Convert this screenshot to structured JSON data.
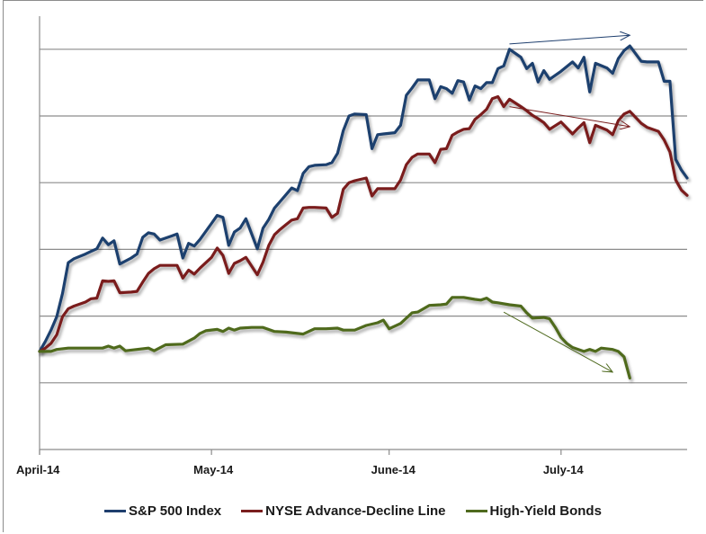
{
  "chart_data": {
    "type": "line",
    "title": "",
    "xlabel": "",
    "ylabel": "",
    "y_units": "relative (gridline intervals, no tick labels shown)",
    "ylim": [
      0,
      6.5
    ],
    "xlim_days": [
      0,
      113
    ],
    "grid": true,
    "legend_position": "bottom",
    "x_ticks": [
      {
        "label": "April-14",
        "day": 0
      },
      {
        "label": "May-14",
        "day": 30
      },
      {
        "label": "June-14",
        "day": 61
      },
      {
        "label": "July-14",
        "day": 91
      }
    ],
    "series": [
      {
        "name": "S&P 500 Index",
        "color": "#1f3f6e",
        "points": [
          [
            0,
            1.47
          ],
          [
            1,
            1.62
          ],
          [
            2,
            1.79
          ],
          [
            3,
            1.99
          ],
          [
            4,
            2.34
          ],
          [
            5,
            2.8
          ],
          [
            6,
            2.86
          ],
          [
            8,
            2.93
          ],
          [
            9,
            2.97
          ],
          [
            10,
            3.01
          ],
          [
            11,
            3.17
          ],
          [
            12,
            3.07
          ],
          [
            13,
            3.13
          ],
          [
            14,
            2.78
          ],
          [
            16,
            2.87
          ],
          [
            17,
            2.93
          ],
          [
            18,
            3.18
          ],
          [
            19,
            3.25
          ],
          [
            20,
            3.23
          ],
          [
            21,
            3.14
          ],
          [
            23,
            3.2
          ],
          [
            24,
            3.23
          ],
          [
            25,
            2.87
          ],
          [
            26,
            3.09
          ],
          [
            27,
            3.05
          ],
          [
            28,
            3.15
          ],
          [
            30,
            3.39
          ],
          [
            31,
            3.51
          ],
          [
            32,
            3.48
          ],
          [
            33,
            3.06
          ],
          [
            34,
            3.26
          ],
          [
            35,
            3.32
          ],
          [
            36,
            3.46
          ],
          [
            38,
            3.01
          ],
          [
            39,
            3.32
          ],
          [
            40,
            3.45
          ],
          [
            41,
            3.62
          ],
          [
            42,
            3.72
          ],
          [
            43,
            3.82
          ],
          [
            44,
            3.92
          ],
          [
            45,
            3.88
          ],
          [
            46,
            4.14
          ],
          [
            47,
            4.24
          ],
          [
            48,
            4.26
          ],
          [
            50,
            4.27
          ],
          [
            51,
            4.3
          ],
          [
            52,
            4.44
          ],
          [
            53,
            4.78
          ],
          [
            54,
            5.0
          ],
          [
            55,
            5.03
          ],
          [
            57,
            5.02
          ],
          [
            58,
            4.51
          ],
          [
            59,
            4.72
          ],
          [
            60,
            4.73
          ],
          [
            62,
            4.75
          ],
          [
            63,
            4.86
          ],
          [
            64,
            5.31
          ],
          [
            65,
            5.42
          ],
          [
            66,
            5.54
          ],
          [
            68,
            5.54
          ],
          [
            69,
            5.26
          ],
          [
            70,
            5.44
          ],
          [
            71,
            5.41
          ],
          [
            72,
            5.34
          ],
          [
            73,
            5.53
          ],
          [
            74,
            5.51
          ],
          [
            75,
            5.24
          ],
          [
            76,
            5.45
          ],
          [
            77,
            5.41
          ],
          [
            78,
            5.5
          ],
          [
            79,
            5.5
          ],
          [
            80,
            5.71
          ],
          [
            81,
            5.75
          ],
          [
            82,
            6.0
          ],
          [
            84,
            5.88
          ],
          [
            85,
            5.71
          ],
          [
            86,
            5.79
          ],
          [
            87,
            5.51
          ],
          [
            88,
            5.68
          ],
          [
            89,
            5.55
          ],
          [
            91,
            5.67
          ],
          [
            93,
            5.81
          ],
          [
            94,
            5.72
          ],
          [
            95,
            5.88
          ],
          [
            96,
            5.36
          ],
          [
            97,
            5.79
          ],
          [
            99,
            5.72
          ],
          [
            100,
            5.64
          ],
          [
            101,
            5.86
          ],
          [
            102,
            5.98
          ],
          [
            103,
            6.05
          ],
          [
            105,
            5.82
          ],
          [
            106,
            5.81
          ],
          [
            108,
            5.81
          ],
          [
            109,
            5.52
          ],
          [
            110,
            5.52
          ],
          [
            111,
            4.35
          ],
          [
            112,
            4.19
          ],
          [
            113,
            4.07
          ]
        ]
      },
      {
        "name": "NYSE Advance-Decline Line",
        "color": "#7a1f1f",
        "points": [
          [
            0,
            1.47
          ],
          [
            1,
            1.52
          ],
          [
            2,
            1.59
          ],
          [
            3,
            1.72
          ],
          [
            4,
            1.99
          ],
          [
            5,
            2.11
          ],
          [
            6,
            2.15
          ],
          [
            8,
            2.21
          ],
          [
            9,
            2.26
          ],
          [
            10,
            2.27
          ],
          [
            11,
            2.53
          ],
          [
            12,
            2.52
          ],
          [
            13,
            2.53
          ],
          [
            14,
            2.35
          ],
          [
            16,
            2.36
          ],
          [
            17,
            2.37
          ],
          [
            18,
            2.51
          ],
          [
            19,
            2.64
          ],
          [
            20,
            2.71
          ],
          [
            21,
            2.76
          ],
          [
            23,
            2.76
          ],
          [
            24,
            2.76
          ],
          [
            25,
            2.57
          ],
          [
            26,
            2.69
          ],
          [
            27,
            2.63
          ],
          [
            28,
            2.72
          ],
          [
            30,
            2.88
          ],
          [
            31,
            3.02
          ],
          [
            32,
            2.91
          ],
          [
            33,
            2.64
          ],
          [
            34,
            2.79
          ],
          [
            35,
            2.83
          ],
          [
            36,
            2.88
          ],
          [
            38,
            2.62
          ],
          [
            39,
            2.81
          ],
          [
            40,
            3.06
          ],
          [
            41,
            3.22
          ],
          [
            42,
            3.3
          ],
          [
            43,
            3.37
          ],
          [
            44,
            3.44
          ],
          [
            45,
            3.46
          ],
          [
            46,
            3.62
          ],
          [
            47,
            3.63
          ],
          [
            48,
            3.63
          ],
          [
            50,
            3.62
          ],
          [
            51,
            3.48
          ],
          [
            52,
            3.54
          ],
          [
            53,
            3.9
          ],
          [
            54,
            4.0
          ],
          [
            55,
            4.03
          ],
          [
            57,
            4.07
          ],
          [
            58,
            3.8
          ],
          [
            59,
            3.91
          ],
          [
            60,
            3.91
          ],
          [
            62,
            3.91
          ],
          [
            63,
            4.04
          ],
          [
            64,
            4.27
          ],
          [
            65,
            4.38
          ],
          [
            66,
            4.43
          ],
          [
            68,
            4.43
          ],
          [
            69,
            4.3
          ],
          [
            70,
            4.5
          ],
          [
            71,
            4.51
          ],
          [
            72,
            4.71
          ],
          [
            73,
            4.76
          ],
          [
            74,
            4.8
          ],
          [
            75,
            4.81
          ],
          [
            76,
            4.95
          ],
          [
            77,
            5.02
          ],
          [
            78,
            5.1
          ],
          [
            79,
            5.26
          ],
          [
            80,
            5.29
          ],
          [
            81,
            5.14
          ],
          [
            82,
            5.25
          ],
          [
            84,
            5.14
          ],
          [
            85,
            5.08
          ],
          [
            86,
            5.01
          ],
          [
            87,
            4.96
          ],
          [
            88,
            4.9
          ],
          [
            89,
            4.8
          ],
          [
            91,
            4.91
          ],
          [
            93,
            4.73
          ],
          [
            94,
            4.82
          ],
          [
            95,
            4.9
          ],
          [
            96,
            4.6
          ],
          [
            97,
            4.86
          ],
          [
            99,
            4.79
          ],
          [
            100,
            4.72
          ],
          [
            101,
            4.93
          ],
          [
            102,
            5.03
          ],
          [
            103,
            5.07
          ],
          [
            105,
            4.89
          ],
          [
            106,
            4.83
          ],
          [
            108,
            4.77
          ],
          [
            109,
            4.64
          ],
          [
            110,
            4.46
          ],
          [
            111,
            4.04
          ],
          [
            112,
            3.89
          ],
          [
            113,
            3.81
          ]
        ]
      },
      {
        "name": "High-Yield Bonds",
        "color": "#4f6a1f",
        "points": [
          [
            0,
            1.47
          ],
          [
            2,
            1.47
          ],
          [
            3,
            1.5
          ],
          [
            5,
            1.52
          ],
          [
            8,
            1.52
          ],
          [
            11,
            1.52
          ],
          [
            12,
            1.55
          ],
          [
            13,
            1.52
          ],
          [
            14,
            1.55
          ],
          [
            15,
            1.48
          ],
          [
            17,
            1.5
          ],
          [
            19,
            1.52
          ],
          [
            20,
            1.48
          ],
          [
            22,
            1.57
          ],
          [
            25,
            1.58
          ],
          [
            27,
            1.67
          ],
          [
            28,
            1.74
          ],
          [
            29,
            1.78
          ],
          [
            31,
            1.8
          ],
          [
            32,
            1.77
          ],
          [
            33,
            1.82
          ],
          [
            34,
            1.79
          ],
          [
            35,
            1.82
          ],
          [
            37,
            1.83
          ],
          [
            39,
            1.83
          ],
          [
            41,
            1.77
          ],
          [
            43,
            1.76
          ],
          [
            46,
            1.73
          ],
          [
            48,
            1.81
          ],
          [
            50,
            1.81
          ],
          [
            52,
            1.82
          ],
          [
            53,
            1.79
          ],
          [
            55,
            1.79
          ],
          [
            57,
            1.86
          ],
          [
            59,
            1.9
          ],
          [
            60,
            1.94
          ],
          [
            61,
            1.81
          ],
          [
            63,
            1.89
          ],
          [
            65,
            2.05
          ],
          [
            66,
            2.06
          ],
          [
            68,
            2.16
          ],
          [
            70,
            2.17
          ],
          [
            71,
            2.18
          ],
          [
            72,
            2.28
          ],
          [
            74,
            2.28
          ],
          [
            76,
            2.25
          ],
          [
            77,
            2.24
          ],
          [
            78,
            2.27
          ],
          [
            79,
            2.21
          ],
          [
            80,
            2.2
          ],
          [
            82,
            2.17
          ],
          [
            84,
            2.15
          ],
          [
            85,
            2.05
          ],
          [
            86,
            1.97
          ],
          [
            88,
            1.98
          ],
          [
            89,
            1.96
          ],
          [
            90,
            1.83
          ],
          [
            91,
            1.68
          ],
          [
            92,
            1.59
          ],
          [
            93,
            1.53
          ],
          [
            95,
            1.47
          ],
          [
            96,
            1.5
          ],
          [
            97,
            1.47
          ],
          [
            98,
            1.52
          ],
          [
            100,
            1.5
          ],
          [
            101,
            1.47
          ],
          [
            102,
            1.39
          ],
          [
            103,
            1.07
          ]
        ]
      }
    ],
    "annotations": [
      {
        "type": "arrow",
        "series": "S&P 500 Index",
        "description": "Higher high trendline",
        "from": [
          82,
          6.08
        ],
        "to": [
          103,
          6.21
        ]
      },
      {
        "type": "arrow",
        "series": "NYSE Advance-Decline Line",
        "description": "Lower high trendline",
        "from": [
          82,
          5.14
        ],
        "to": [
          103,
          4.84
        ]
      },
      {
        "type": "arrow",
        "series": "High-Yield Bonds",
        "description": "Declining trendline",
        "from": [
          81,
          2.06
        ],
        "to": [
          100,
          1.16
        ]
      }
    ]
  },
  "legend": {
    "items": [
      {
        "label": "S&P 500 Index",
        "color": "#1f3f6e"
      },
      {
        "label": "NYSE Advance-Decline Line",
        "color": "#7a1f1f"
      },
      {
        "label": "High-Yield Bonds",
        "color": "#4f6a1f"
      }
    ]
  }
}
